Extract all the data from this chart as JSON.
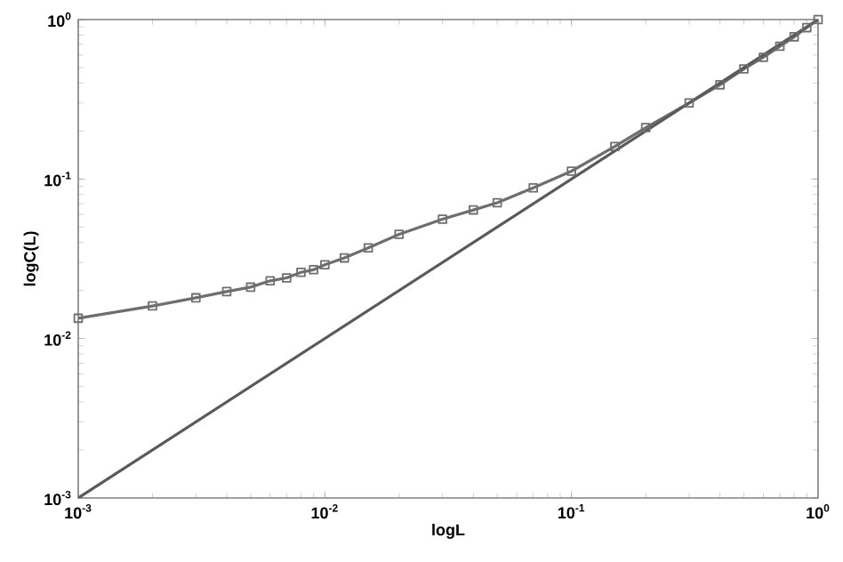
{
  "chart_data": {
    "type": "line",
    "xlabel": "logL",
    "ylabel": "logC(L)",
    "log": "xy",
    "grid": false,
    "xlim": [
      0.001,
      1
    ],
    "ylim": [
      0.001,
      1
    ],
    "xticks": [
      {
        "value": 0.001,
        "label": "10$^{-3}$"
      },
      {
        "value": 0.01,
        "label": "10$^{-2}$"
      },
      {
        "value": 0.1,
        "label": "10$^{-1}$"
      },
      {
        "value": 1,
        "label": "10$^{0}$"
      }
    ],
    "yticks": [
      {
        "value": 0.001,
        "label": "10$^{-3}$"
      },
      {
        "value": 0.01,
        "label": "10$^{-2}$"
      },
      {
        "value": 0.1,
        "label": "10$^{-1}$"
      },
      {
        "value": 1,
        "label": "10$^{0}$"
      }
    ],
    "series": [
      {
        "color": "#6e6e6e",
        "marker": "square",
        "line_style": "solid",
        "x": [
          0.001,
          0.002,
          0.003,
          0.004,
          0.005,
          0.006,
          0.007,
          0.008,
          0.009,
          0.01,
          0.012,
          0.015,
          0.02,
          0.03,
          0.04,
          0.05,
          0.07,
          0.1,
          0.15,
          0.2,
          0.3,
          0.4,
          0.5,
          0.6,
          0.7,
          0.8,
          0.9,
          1
        ],
        "values": [
          0.0134,
          0.016,
          0.018,
          0.0197,
          0.021,
          0.023,
          0.024,
          0.026,
          0.027,
          0.029,
          0.032,
          0.037,
          0.045,
          0.056,
          0.064,
          0.071,
          0.088,
          0.112,
          0.16,
          0.21,
          0.3,
          0.39,
          0.49,
          0.58,
          0.68,
          0.78,
          0.89,
          1
        ]
      },
      {
        "color": "#5a5a5a",
        "marker": "none",
        "line_style": "solid",
        "x": [
          0.001,
          1
        ],
        "values": [
          0.001,
          1
        ]
      }
    ]
  }
}
